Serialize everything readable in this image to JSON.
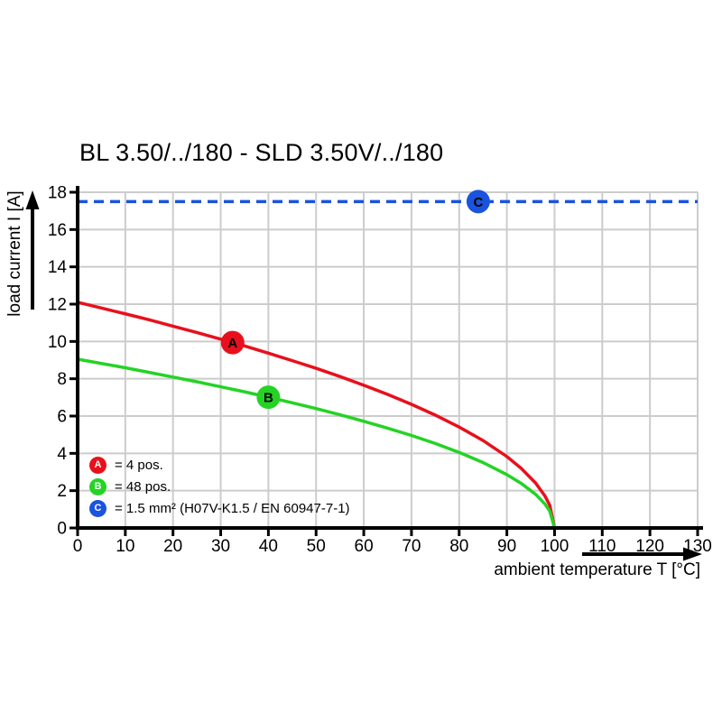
{
  "colors": {
    "red": "#e8101c",
    "green": "#25d325",
    "blue": "#1a53de",
    "grid": "#cccccc",
    "axis": "#000000",
    "background": "#ffffff",
    "marker_text": "#ffffff"
  },
  "chart_data": {
    "type": "line",
    "title": "BL 3.50/../180 - SLD 3.50V/../180",
    "xlabel": "ambient temperature T [°C]",
    "ylabel": "load current I [A]",
    "xlim": [
      0,
      130
    ],
    "ylim": [
      0,
      18
    ],
    "x_ticks": [
      0,
      10,
      20,
      30,
      40,
      50,
      60,
      70,
      80,
      90,
      100,
      110,
      120,
      130
    ],
    "y_ticks": [
      0,
      2,
      4,
      6,
      8,
      10,
      12,
      14,
      16,
      18
    ],
    "grid": true,
    "legend_position": "inside-lower-left",
    "series": [
      {
        "name": "A",
        "legend_label": "= 4 pos.",
        "color": "#e8101c",
        "style": "solid",
        "marker": {
          "letter": "A",
          "x": 32.5,
          "y": 9.94
        },
        "points": [
          [
            0,
            12.1
          ],
          [
            5,
            11.79
          ],
          [
            10,
            11.48
          ],
          [
            15,
            11.16
          ],
          [
            20,
            10.82
          ],
          [
            25,
            10.48
          ],
          [
            30,
            10.12
          ],
          [
            35,
            9.76
          ],
          [
            40,
            9.37
          ],
          [
            45,
            8.97
          ],
          [
            50,
            8.56
          ],
          [
            55,
            8.12
          ],
          [
            60,
            7.65
          ],
          [
            65,
            7.16
          ],
          [
            70,
            6.63
          ],
          [
            75,
            6.05
          ],
          [
            80,
            5.41
          ],
          [
            85,
            4.69
          ],
          [
            90,
            3.83
          ],
          [
            93,
            3.2
          ],
          [
            96,
            2.42
          ],
          [
            98,
            1.71
          ],
          [
            99,
            1.21
          ],
          [
            100,
            0
          ]
        ]
      },
      {
        "name": "B",
        "legend_label": "= 48 pos.",
        "color": "#25d325",
        "style": "solid",
        "marker": {
          "letter": "B",
          "x": 40,
          "y": 7.01
        },
        "points": [
          [
            0,
            9.05
          ],
          [
            5,
            8.82
          ],
          [
            10,
            8.59
          ],
          [
            15,
            8.34
          ],
          [
            20,
            8.09
          ],
          [
            25,
            7.84
          ],
          [
            30,
            7.57
          ],
          [
            35,
            7.3
          ],
          [
            40,
            7.01
          ],
          [
            45,
            6.71
          ],
          [
            50,
            6.4
          ],
          [
            55,
            6.07
          ],
          [
            60,
            5.72
          ],
          [
            65,
            5.35
          ],
          [
            70,
            4.96
          ],
          [
            75,
            4.53
          ],
          [
            80,
            4.05
          ],
          [
            85,
            3.51
          ],
          [
            90,
            2.86
          ],
          [
            93,
            2.39
          ],
          [
            96,
            1.81
          ],
          [
            98,
            1.28
          ],
          [
            99,
            0.9
          ],
          [
            100,
            0
          ]
        ]
      },
      {
        "name": "C",
        "legend_label": "= 1.5 mm² (H07V-K1.5 / EN 60947-7-1)",
        "color": "#1a53de",
        "style": "dashed",
        "marker": {
          "letter": "C",
          "x": 84,
          "y": 17.5
        },
        "points": [
          [
            0,
            17.5
          ],
          [
            130,
            17.5
          ]
        ]
      }
    ]
  }
}
